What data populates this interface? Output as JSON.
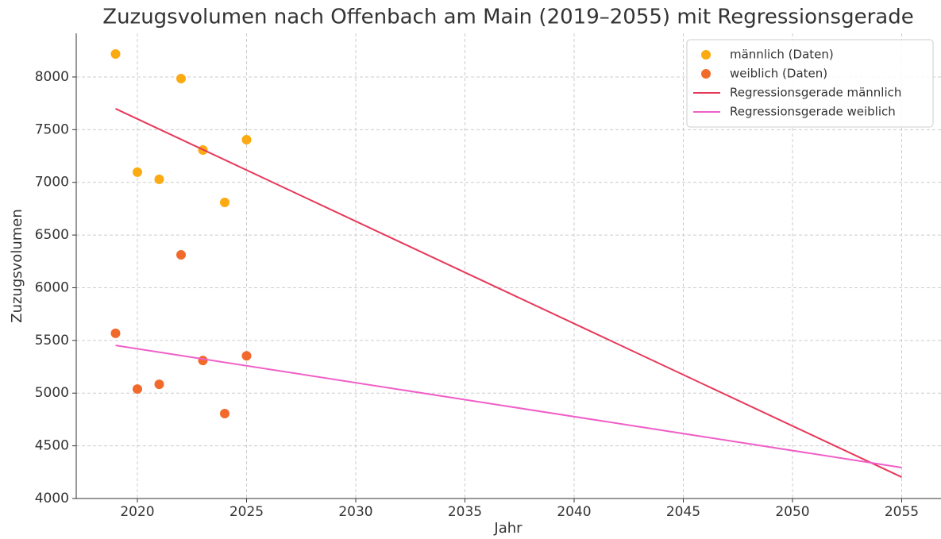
{
  "chart_data": {
    "type": "scatter",
    "title": "Zuzugsvolumen nach Offenbach am Main (2019–2055) mit Regressionsgerade",
    "x_label": "Jahr",
    "y_label": "Zuzugsvolumen",
    "xlim": [
      2017.2,
      2056.8
    ],
    "ylim": [
      4000,
      8414
    ],
    "xticks": [
      2020,
      2025,
      2030,
      2035,
      2040,
      2045,
      2050,
      2055
    ],
    "yticks": [
      4000,
      4500,
      5000,
      5500,
      6000,
      6500,
      7000,
      7500,
      8000
    ],
    "grid": true,
    "legend": "upper-right",
    "series": [
      {
        "name": "männlich (Daten)",
        "mode": "points",
        "color": "#fbaa12",
        "x": [
          2019,
          2020,
          2021,
          2022,
          2023,
          2024,
          2025
        ],
        "values": [
          8218,
          7097,
          7029,
          7985,
          7307,
          6810,
          7405
        ]
      },
      {
        "name": "weiblich (Daten)",
        "mode": "points",
        "color": "#f26a2b",
        "x": [
          2019,
          2020,
          2021,
          2022,
          2023,
          2024,
          2025
        ],
        "values": [
          5568,
          5039,
          5084,
          6312,
          5310,
          4806,
          5354
        ]
      },
      {
        "name": "Regressionsgerade männlich",
        "mode": "line",
        "color": "#e8385a",
        "x": [
          2019,
          2055
        ],
        "values": [
          7699,
          4203
        ]
      },
      {
        "name": "Regressionsgerade weiblich",
        "mode": "line",
        "color": "#ef5fc8",
        "x": [
          2019,
          2055
        ],
        "values": [
          5453,
          4294
        ]
      }
    ]
  }
}
